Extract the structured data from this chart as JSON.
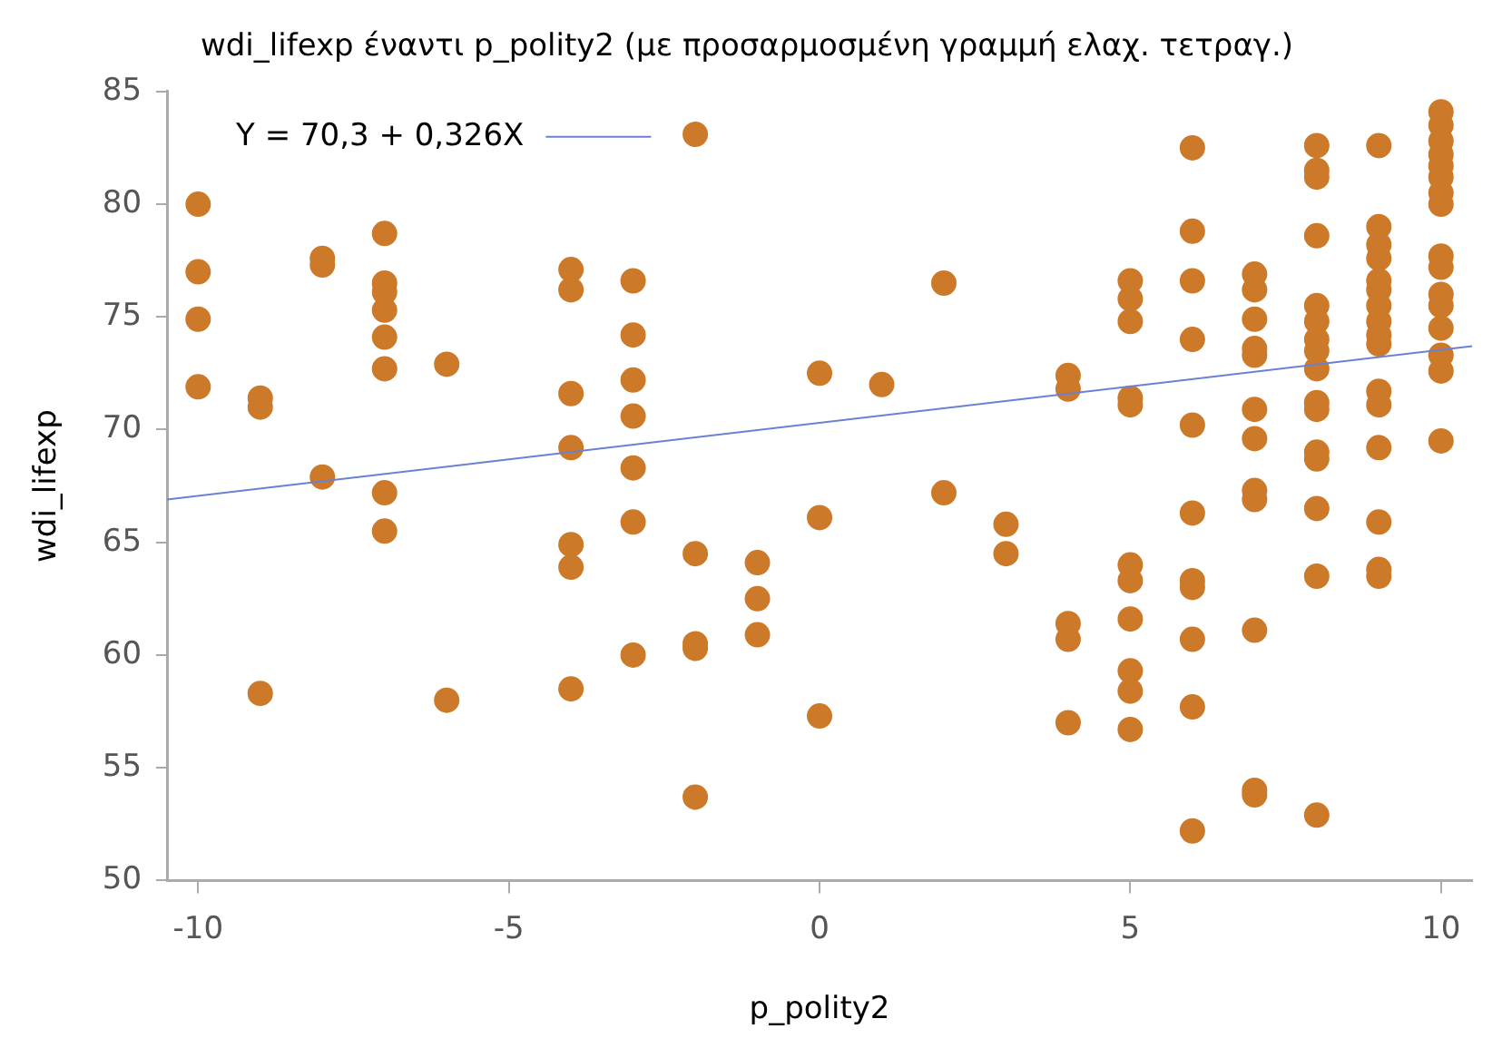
{
  "chart_data": {
    "type": "scatter",
    "title": "wdi_lifexp έναντι p_polity2 (με προσαρμοσμένη γραμμή ελαχ. τετραγ.)",
    "xlabel": "p_polity2",
    "ylabel": "wdi_lifexp",
    "xlim": [
      -10.5,
      10.5
    ],
    "xticks": [
      -10,
      -5,
      0,
      5,
      10
    ],
    "ylim": [
      50,
      85
    ],
    "yticks": [
      50,
      55,
      60,
      65,
      70,
      75,
      80,
      85
    ],
    "grid": false,
    "legend": "top left",
    "marker": "circle",
    "series": [
      {
        "color": "#cc7a29",
        "x": [
          -10,
          -10,
          -10,
          -10,
          -9,
          -9,
          -9,
          -8,
          -8,
          -8,
          -7,
          -7,
          -7,
          -7,
          -7,
          -7,
          -7,
          -7,
          -6,
          -6,
          -4,
          -4,
          -4,
          -4,
          -4,
          -4,
          -4,
          -3,
          -3,
          -3,
          -3,
          -3,
          -3,
          -3,
          -2,
          -2,
          -2,
          -2,
          -2,
          -1,
          -1,
          -1,
          0,
          0,
          0,
          1,
          2,
          2,
          3,
          3,
          4,
          4,
          4,
          4,
          4,
          5,
          5,
          5,
          5,
          5,
          5,
          5,
          5,
          5,
          5,
          5,
          6,
          6,
          6,
          6,
          6,
          6,
          6,
          6,
          6,
          6,
          6,
          7,
          7,
          7,
          7,
          7,
          7,
          7,
          7,
          7,
          7,
          7,
          7,
          8,
          8,
          8,
          8,
          8,
          8,
          8,
          8,
          8,
          8,
          8,
          8,
          8,
          8,
          8,
          8,
          9,
          9,
          9,
          9,
          9,
          9,
          9,
          9,
          9,
          9,
          9,
          9,
          9,
          9,
          9,
          9,
          10,
          10,
          10,
          10,
          10,
          10,
          10,
          10,
          10,
          10,
          10,
          10,
          10,
          10,
          10,
          10
        ],
        "values": [
          80,
          77,
          74.9,
          71.9,
          71.4,
          71.0,
          58.3,
          77.6,
          77.3,
          67.9,
          78.7,
          76.5,
          76.1,
          75.3,
          74.1,
          72.7,
          67.2,
          65.5,
          72.9,
          58.0,
          77.1,
          76.2,
          71.6,
          69.2,
          64.9,
          63.9,
          58.5,
          76.6,
          74.2,
          72.2,
          70.6,
          68.3,
          65.9,
          60.0,
          83.1,
          64.5,
          60.5,
          60.3,
          53.7,
          64.1,
          62.5,
          60.9,
          72.5,
          66.1,
          57.3,
          72.0,
          76.5,
          67.2,
          65.8,
          64.5,
          72.4,
          71.8,
          61.4,
          60.7,
          57.0,
          76.6,
          75.8,
          74.8,
          71.4,
          71.1,
          64.0,
          63.3,
          61.6,
          59.3,
          58.4,
          56.7,
          82.5,
          78.8,
          76.6,
          74.0,
          70.2,
          66.3,
          63.3,
          63.0,
          60.7,
          57.7,
          52.2,
          76.9,
          76.2,
          74.9,
          73.6,
          73.3,
          70.9,
          69.6,
          67.3,
          66.9,
          61.1,
          54.0,
          53.8,
          82.6,
          81.5,
          81.2,
          78.6,
          75.5,
          74.8,
          74.0,
          73.5,
          72.7,
          71.2,
          70.9,
          69.0,
          68.7,
          66.5,
          63.5,
          52.9,
          82.6,
          79.0,
          78.2,
          77.6,
          76.6,
          76.2,
          75.5,
          74.8,
          74.2,
          73.8,
          71.7,
          71.1,
          69.2,
          65.9,
          63.8,
          63.5,
          84.1,
          83.5,
          82.8,
          82.2,
          81.7,
          81.2,
          80.5,
          80.0,
          77.7,
          77.2,
          76.0,
          75.5,
          74.5,
          73.3,
          72.6,
          69.5
        ]
      },
      {
        "type": "line",
        "name": "Y = 70,3 + 0,326X",
        "color": "#6b80d4",
        "marker": "none",
        "line_style": "solid",
        "x": [
          -10.5,
          10.5
        ],
        "values": [
          66.9,
          73.7
        ]
      }
    ]
  }
}
